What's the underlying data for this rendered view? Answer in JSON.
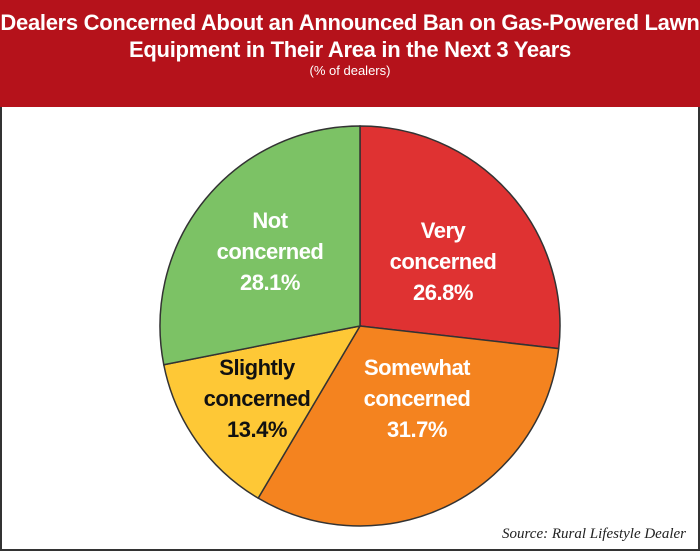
{
  "chart_data": {
    "type": "pie",
    "title": "Dealers Concerned About an Announced Ban on Gas-Powered Lawn Equipment in Their Area in the Next 3 Years",
    "subtitle": "(% of dealers)",
    "slices": [
      {
        "label_lines": [
          "Very",
          "concerned"
        ],
        "value": 26.8,
        "value_label": "26.8%",
        "color": "#df3232",
        "text_color": "#ffffff"
      },
      {
        "label_lines": [
          "Somewhat",
          "concerned"
        ],
        "value": 31.7,
        "value_label": "31.7%",
        "color": "#f4831f",
        "text_color": "#ffffff"
      },
      {
        "label_lines": [
          "Slightly",
          "concerned"
        ],
        "value": 13.4,
        "value_label": "13.4%",
        "color": "#fec836",
        "text_color": "#111111"
      },
      {
        "label_lines": [
          "Not",
          "concerned"
        ],
        "value": 28.1,
        "value_label": "28.1%",
        "color": "#7cc265",
        "text_color": "#ffffff"
      }
    ],
    "source": "Source: Rural Lifestyle Dealer"
  }
}
